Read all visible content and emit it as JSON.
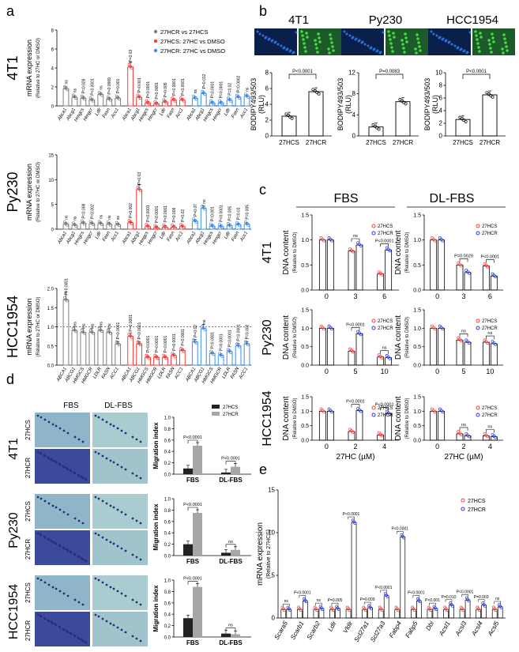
{
  "figure": {
    "panel_labels": [
      "a",
      "b",
      "c",
      "d",
      "e"
    ],
    "colors": {
      "hcr_vs_hcs": "#7f7f7f",
      "hcs": "#ff3b3b",
      "hcr": "#3b8ef0",
      "hcs_dot": "#ff3b3b",
      "hcr_dot": "#2a3bd6",
      "gray_bar": "#a6a6a6",
      "black_bar": "#222222"
    }
  },
  "chart_data": [
    {
      "panel": "a",
      "type": "bar",
      "ylabel": "mRNA expression",
      "ylabel2": "(Relative to 27HC or DMSO)",
      "legend": [
        "27HCR vs 27HCS",
        "27HCS: 27HC vs DMSO",
        "27HCR: 27HC vs DMSO"
      ],
      "rows": [
        {
          "cell": "4T1",
          "ylim": [
            0,
            8
          ],
          "yticks": [
            0,
            2,
            4,
            6,
            8
          ],
          "genes": [
            "Abca1",
            "Abcg1",
            "Hmgcs",
            "Hmgcr",
            "Ldlr",
            "Fasn",
            "Acc1"
          ],
          "groups": [
            {
              "values": [
                1.8,
                0.9,
                0.8,
                0.6,
                1.2,
                0.7,
                0.8
              ],
              "pvals": [
                "ns",
                "ns",
                "P=0.028",
                "P<0.0001",
                "ns",
                "P=0.0009",
                "P=0.001"
              ]
            },
            {
              "values": [
                4.1,
                0.9,
                0.3,
                0.2,
                0.4,
                0.6,
                0.6
              ],
              "pvals": [
                "P=0.03",
                "P=0.001",
                "P<0.0001",
                "P<0.0001",
                "P=0.005",
                "P<0.0001",
                "P<0.0001"
              ]
            },
            {
              "values": [
                0.8,
                1.3,
                0.3,
                0.3,
                0.6,
                0.9,
                1.0
              ],
              "pvals": [
                "ns",
                "P=0.012",
                "P=0.0001",
                "P=0.0001",
                "P=0.02",
                "P=0.0002",
                "ns"
              ]
            }
          ]
        },
        {
          "cell": "Py230",
          "ylim": [
            0,
            15
          ],
          "yticks": [
            0,
            5,
            10,
            15
          ],
          "genes": [
            "Abca1",
            "Abcg1",
            "Hmgcs",
            "Hmgcr",
            "Ldlr",
            "Fasn",
            "Acc1"
          ],
          "groups": [
            {
              "values": [
                1.0,
                0.8,
                1.2,
                1.1,
                1.1,
                1.0,
                0.9
              ],
              "pvals": [
                "ns",
                "ns",
                "P=0.008",
                "P=0.002",
                "ns",
                "ns",
                "ns"
              ]
            },
            {
              "values": [
                1.3,
                8.0,
                0.5,
                0.3,
                0.4,
                0.4,
                0.5
              ],
              "pvals": [
                "P=0.002",
                "P=0.03",
                "P<0.0001",
                "P<0.0001",
                "P<0.0001",
                "P=0.009",
                "P=0.02"
              ]
            },
            {
              "values": [
                1.6,
                4.2,
                0.6,
                0.5,
                0.7,
                0.9,
                1.0
              ],
              "pvals": [
                "P=0.07",
                "ns",
                "P=0.001",
                "P<0.0001",
                "P=0.005",
                "P=0.01",
                "P=0.005"
              ]
            }
          ]
        },
        {
          "cell": "HCC1954",
          "ylim": [
            0,
            2.0
          ],
          "yticks": [
            0.0,
            0.5,
            1.0,
            1.5,
            2.0
          ],
          "genes": [
            "ABCA1",
            "ABCG1",
            "HMGCS",
            "HMGCR",
            "LDLR",
            "FASN",
            "ACC1"
          ],
          "groups": [
            {
              "values": [
                1.7,
                0.9,
                0.85,
                0.85,
                0.9,
                0.85,
                0.55
              ],
              "pvals": [
                "P<0.0001",
                "ns",
                "ns",
                "ns",
                "ns",
                "ns",
                "P=0.0001"
              ]
            },
            {
              "values": [
                0.75,
                0.55,
                0.2,
                0.2,
                0.2,
                0.25,
                0.38
              ],
              "pvals": [
                "P=0.0001",
                "P=0.0001",
                "P=0.0001",
                "P=0.0001",
                "P<0.0001",
                "P<0.0001",
                "P<0.0001"
              ]
            },
            {
              "values": [
                0.6,
                0.95,
                0.3,
                0.25,
                0.35,
                0.5,
                0.55
              ],
              "pvals": [
                "P=0.02",
                "ns",
                "P=0.0001",
                "P=0.0001",
                "P=0.0001",
                "P=0.0001",
                "P=0.002"
              ]
            }
          ]
        }
      ]
    },
    {
      "panel": "b",
      "type": "bar",
      "ylabel": "BODIPY493/503",
      "ylabel2": "(RLU)",
      "categories": [
        "27HCS",
        "27HCR"
      ],
      "plots": [
        {
          "cell": "4T1",
          "values": [
            2.5,
            5.6
          ],
          "ylim": [
            0,
            8
          ],
          "yticks": [
            0,
            2,
            4,
            6,
            8
          ],
          "pval": "P<0.0001"
        },
        {
          "cell": "Py230",
          "values": [
            1.7,
            6.5
          ],
          "ylim": [
            0,
            12
          ],
          "yticks": [
            0,
            4,
            8,
            12
          ],
          "pval": "P=0.0083"
        },
        {
          "cell": "HCC1954",
          "values": [
            2.6,
            6.5
          ],
          "ylim": [
            0,
            10
          ],
          "yticks": [
            0,
            2,
            4,
            6,
            8,
            10
          ],
          "pval": "P<0.0001"
        }
      ]
    },
    {
      "panel": "c",
      "type": "bar",
      "ylabel": "DNA content",
      "ylabel2": "(Relative to DMSO)",
      "xlabel": "27HC (µM)",
      "columns": [
        "FBS",
        "DL-FBS"
      ],
      "ylim": [
        0,
        1.5
      ],
      "yticks": [
        0.0,
        0.5,
        1.0,
        1.5
      ],
      "series_names": [
        "27HCS",
        "27HCR"
      ],
      "rows": [
        {
          "cell": "4T1",
          "x": [
            "0",
            "3",
            "6"
          ],
          "FBS": {
            "27HCS": [
              1.0,
              0.78,
              0.32
            ],
            "27HCR": [
              1.0,
              0.9,
              0.8
            ],
            "sig": [
              "ns",
              "P<0.0001"
            ]
          },
          "DL-FBS": {
            "27HCS": [
              1.0,
              0.5,
              0.48
            ],
            "27HCR": [
              1.0,
              0.35,
              0.28
            ],
            "sig": [
              "P=0.0029",
              "P<0.0001"
            ]
          }
        },
        {
          "cell": "Py230",
          "x": [
            "0",
            "5",
            "10"
          ],
          "FBS": {
            "27HCS": [
              1.0,
              0.38,
              0.22
            ],
            "27HCR": [
              1.0,
              0.85,
              0.2
            ],
            "sig": [
              "P<0.0001",
              "ns"
            ]
          },
          "DL-FBS": {
            "27HCS": [
              1.0,
              0.68,
              0.62
            ],
            "27HCR": [
              1.0,
              0.62,
              0.58
            ],
            "sig": [
              "ns",
              "ns"
            ]
          }
        },
        {
          "cell": "HCC1954",
          "x": [
            "0",
            "2",
            "4"
          ],
          "FBS": {
            "27HCS": [
              1.0,
              0.3,
              0.18
            ],
            "27HCR": [
              1.0,
              1.02,
              0.92
            ],
            "sig": [
              "P<0.0001",
              "P<0.0001"
            ]
          },
          "DL-FBS": {
            "27HCS": [
              1.0,
              0.22,
              0.15
            ],
            "27HCR": [
              1.0,
              0.15,
              0.12
            ],
            "sig": [
              "ns",
              "ns"
            ]
          }
        }
      ]
    },
    {
      "panel": "d",
      "type": "bar",
      "column_labels": [
        "FBS",
        "DL-FBS"
      ],
      "row_labels": [
        "27HCS",
        "27HCR"
      ],
      "ylabel": "Migration index",
      "categories": [
        "FBS",
        "DL-FBS"
      ],
      "series_names": [
        "27HCS",
        "27HCR"
      ],
      "ylim": [
        0,
        1.0
      ],
      "yticks": [
        0.0,
        0.2,
        0.4,
        0.6,
        0.8,
        1.0
      ],
      "plots": [
        {
          "cell": "4T1",
          "27HCS": [
            0.1,
            0.03
          ],
          "27HCR": [
            0.5,
            0.13
          ],
          "sig": [
            "P<0.0001",
            "P<0.0001"
          ]
        },
        {
          "cell": "Py230",
          "27HCS": [
            0.2,
            0.05
          ],
          "27HCR": [
            0.75,
            0.1
          ],
          "sig": [
            "P<0.0001",
            "ns"
          ]
        },
        {
          "cell": "HCC1954",
          "27HCS": [
            0.33,
            0.06
          ],
          "27HCR": [
            0.88,
            0.05
          ],
          "sig": [
            "P<0.0001",
            "ns"
          ]
        }
      ]
    },
    {
      "panel": "e",
      "type": "bar",
      "ylabel": "mRNA expression",
      "ylabel2": "(Relative to 27HCS)",
      "ylim": [
        0,
        15
      ],
      "yticks": [
        0,
        5,
        10,
        15
      ],
      "series_names": [
        "27HCS",
        "27HCR"
      ],
      "categories": [
        "Scara5",
        "Scarb1",
        "Scarb2",
        "Ldlr",
        "Vldlr",
        "Scl27a1",
        "Scl27a3",
        "Fabp4",
        "Fabp5",
        "Dbi",
        "Acsl1",
        "Acsl3",
        "Acsl4",
        "Acsl5"
      ],
      "27HCS": [
        1,
        1,
        1,
        1,
        1,
        1,
        1,
        1,
        1,
        1,
        1,
        1,
        1,
        1
      ],
      "27HCR": [
        1.0,
        2.0,
        1.1,
        1.1,
        11.2,
        1.2,
        2.6,
        9.5,
        2.0,
        1.1,
        1.5,
        2.1,
        1.5,
        1.3
      ],
      "sig": [
        "ns",
        "P<0.0001",
        "ns",
        "P=0.005",
        "P<0.0001",
        "P=0.009",
        "P<0.0001",
        "P<0.0001",
        "P<0.0001",
        "P<0.001",
        "P=0.010",
        "P<0.0001",
        "P=0.003",
        "ns"
      ]
    }
  ]
}
